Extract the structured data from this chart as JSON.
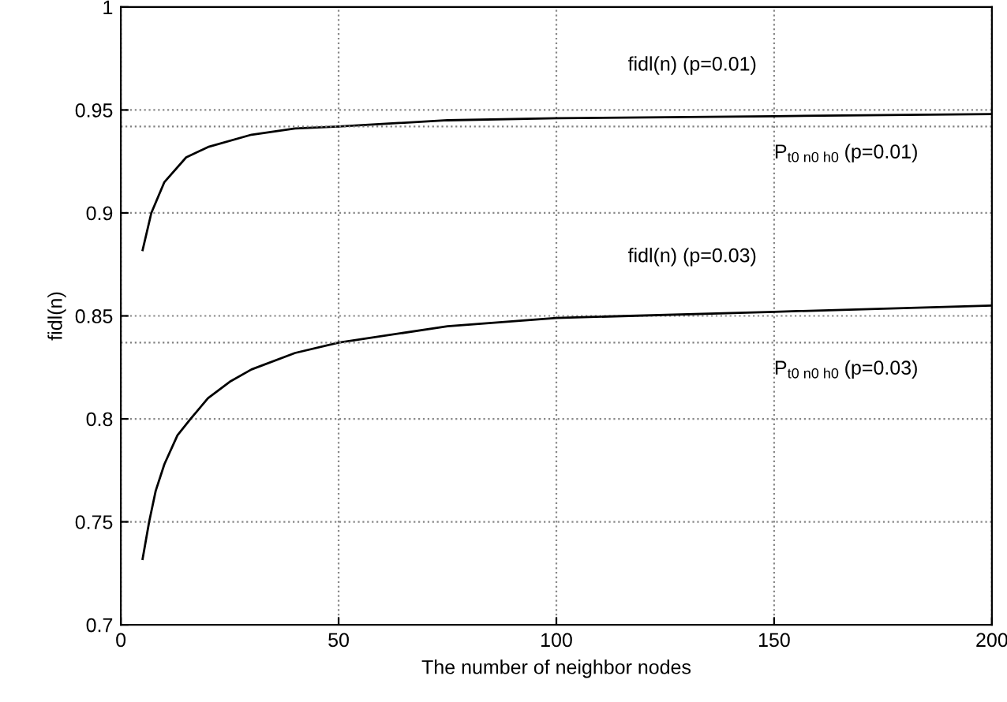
{
  "chart_data": {
    "type": "line",
    "xlabel": "The number of neighbor nodes",
    "ylabel": "fidl(n)",
    "xlim": [
      0,
      200
    ],
    "xticks": [
      0,
      50,
      100,
      150,
      200
    ],
    "ylim": [
      0.7,
      1
    ],
    "yticks": [
      0.7,
      0.75,
      0.8,
      0.85,
      0.9,
      0.95,
      1
    ],
    "grid": true,
    "marker": "none",
    "line_style": "solid",
    "series": [
      {
        "name": "fidl(n) (p=0.01)",
        "color": "#000000",
        "x": [
          5,
          7,
          10,
          15,
          20,
          30,
          40,
          50,
          75,
          100,
          150,
          200
        ],
        "values": [
          0.882,
          0.9,
          0.915,
          0.927,
          0.932,
          0.938,
          0.941,
          0.942,
          0.945,
          0.946,
          0.947,
          0.948
        ]
      },
      {
        "name": "fidl(n) (p=0.03)",
        "color": "#000000",
        "x": [
          5,
          6.5,
          8,
          10,
          13,
          16,
          20,
          25,
          30,
          40,
          50,
          75,
          100,
          150,
          200
        ],
        "values": [
          0.732,
          0.75,
          0.765,
          0.778,
          0.792,
          0.8,
          0.81,
          0.818,
          0.824,
          0.832,
          0.837,
          0.845,
          0.849,
          0.852,
          0.855
        ]
      }
    ],
    "ref_lines": [
      {
        "axis": "y",
        "value": 0.942,
        "color": "#808080",
        "line_style": "dotted"
      },
      {
        "axis": "y",
        "value": 0.837,
        "color": "#808080",
        "line_style": "dotted"
      }
    ],
    "annotations": [
      "P$_{t0 n0 h0}$ (p=0.01)",
      "P$_{t0 n0 h0}$ (p=0.03)"
    ]
  }
}
